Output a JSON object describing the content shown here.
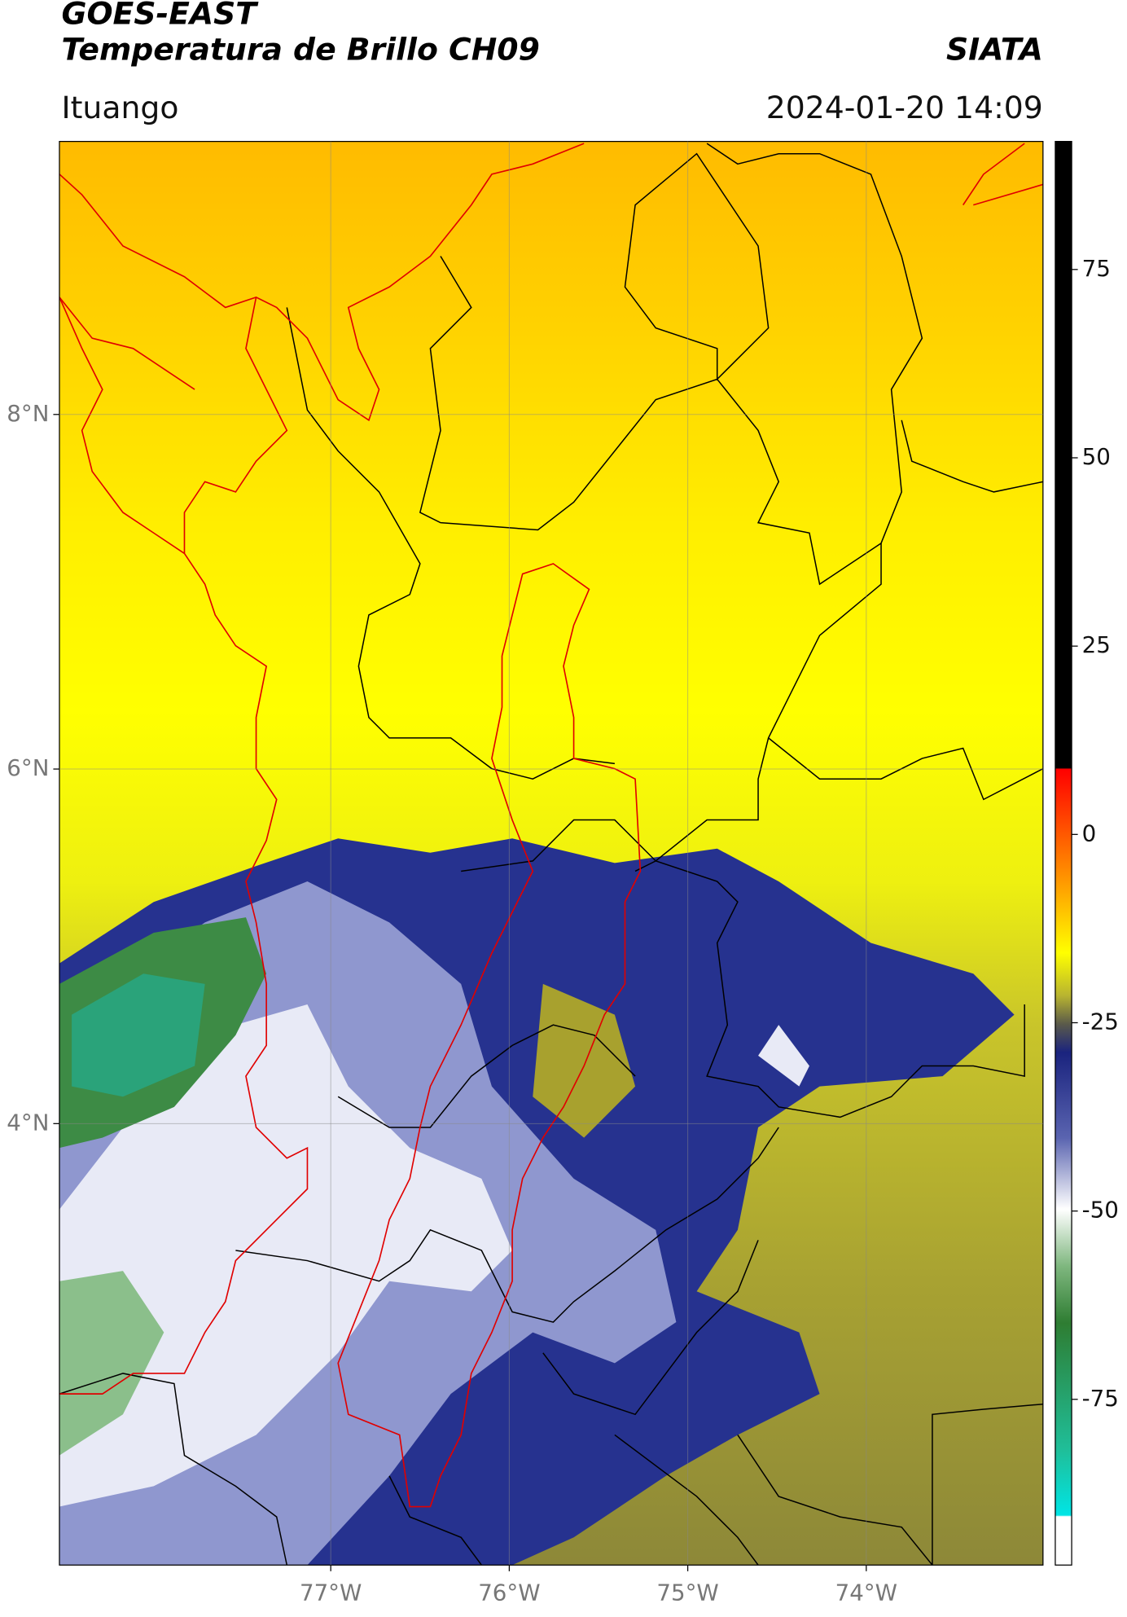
{
  "chart_data": {
    "type": "map",
    "title": "GOES-EAST",
    "subtitle": "Temperatura de Brillo CH09",
    "source": "SIATA",
    "location": "Ituango",
    "datetime": "2024-01-20 14:09",
    "xlim": [
      -78.52,
      -73.01
    ],
    "ylim": [
      1.51,
      9.54
    ],
    "xticks": [
      {
        "value": -77,
        "label": "77°W"
      },
      {
        "value": -76,
        "label": "76°W"
      },
      {
        "value": -75,
        "label": "75°W"
      },
      {
        "value": -74,
        "label": "74°W"
      }
    ],
    "yticks": [
      {
        "value": 8,
        "label": "8°N"
      },
      {
        "value": 6,
        "label": "6°N"
      },
      {
        "value": 4,
        "label": "4°N"
      }
    ],
    "grid": true,
    "colorbar": {
      "lim": [
        -97,
        92
      ],
      "ticks": [
        75,
        50,
        25,
        0,
        -25,
        -50,
        -75
      ]
    }
  }
}
